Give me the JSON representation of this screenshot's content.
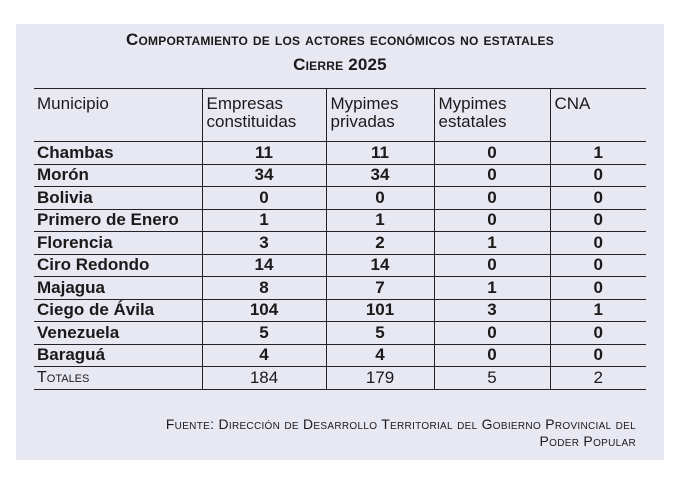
{
  "title_line1": "Comportamiento de los actores económicos no estatales",
  "title_line2": "Cierre 2025",
  "headers": [
    "Municipio",
    "Empresas constituidas",
    "Mypimes privadas",
    "Mypimes estatales",
    "CNA"
  ],
  "rows": [
    [
      "Chambas",
      "11",
      "11",
      "0",
      "1"
    ],
    [
      "Morón",
      "34",
      "34",
      "0",
      "0"
    ],
    [
      "Bolivia",
      "0",
      "0",
      "0",
      "0"
    ],
    [
      "Primero de Enero",
      "1",
      "1",
      "0",
      "0"
    ],
    [
      "Florencia",
      "3",
      "2",
      "1",
      "0"
    ],
    [
      "Ciro Redondo",
      "14",
      "14",
      "0",
      "0"
    ],
    [
      "Majagua",
      "8",
      "7",
      "1",
      "0"
    ],
    [
      "Ciego de Ávila",
      "104",
      "101",
      "3",
      "1"
    ],
    [
      "Venezuela",
      "5",
      "5",
      "0",
      "0"
    ],
    [
      "Baraguá",
      "4",
      "4",
      "0",
      "0"
    ]
  ],
  "totals": [
    "Totales",
    "184",
    "179",
    "5",
    "2"
  ],
  "source_line1": "Fuente: Dirección de Desarrollo Territorial del Gobierno Provincial del",
  "source_line2": "Poder Popular"
}
